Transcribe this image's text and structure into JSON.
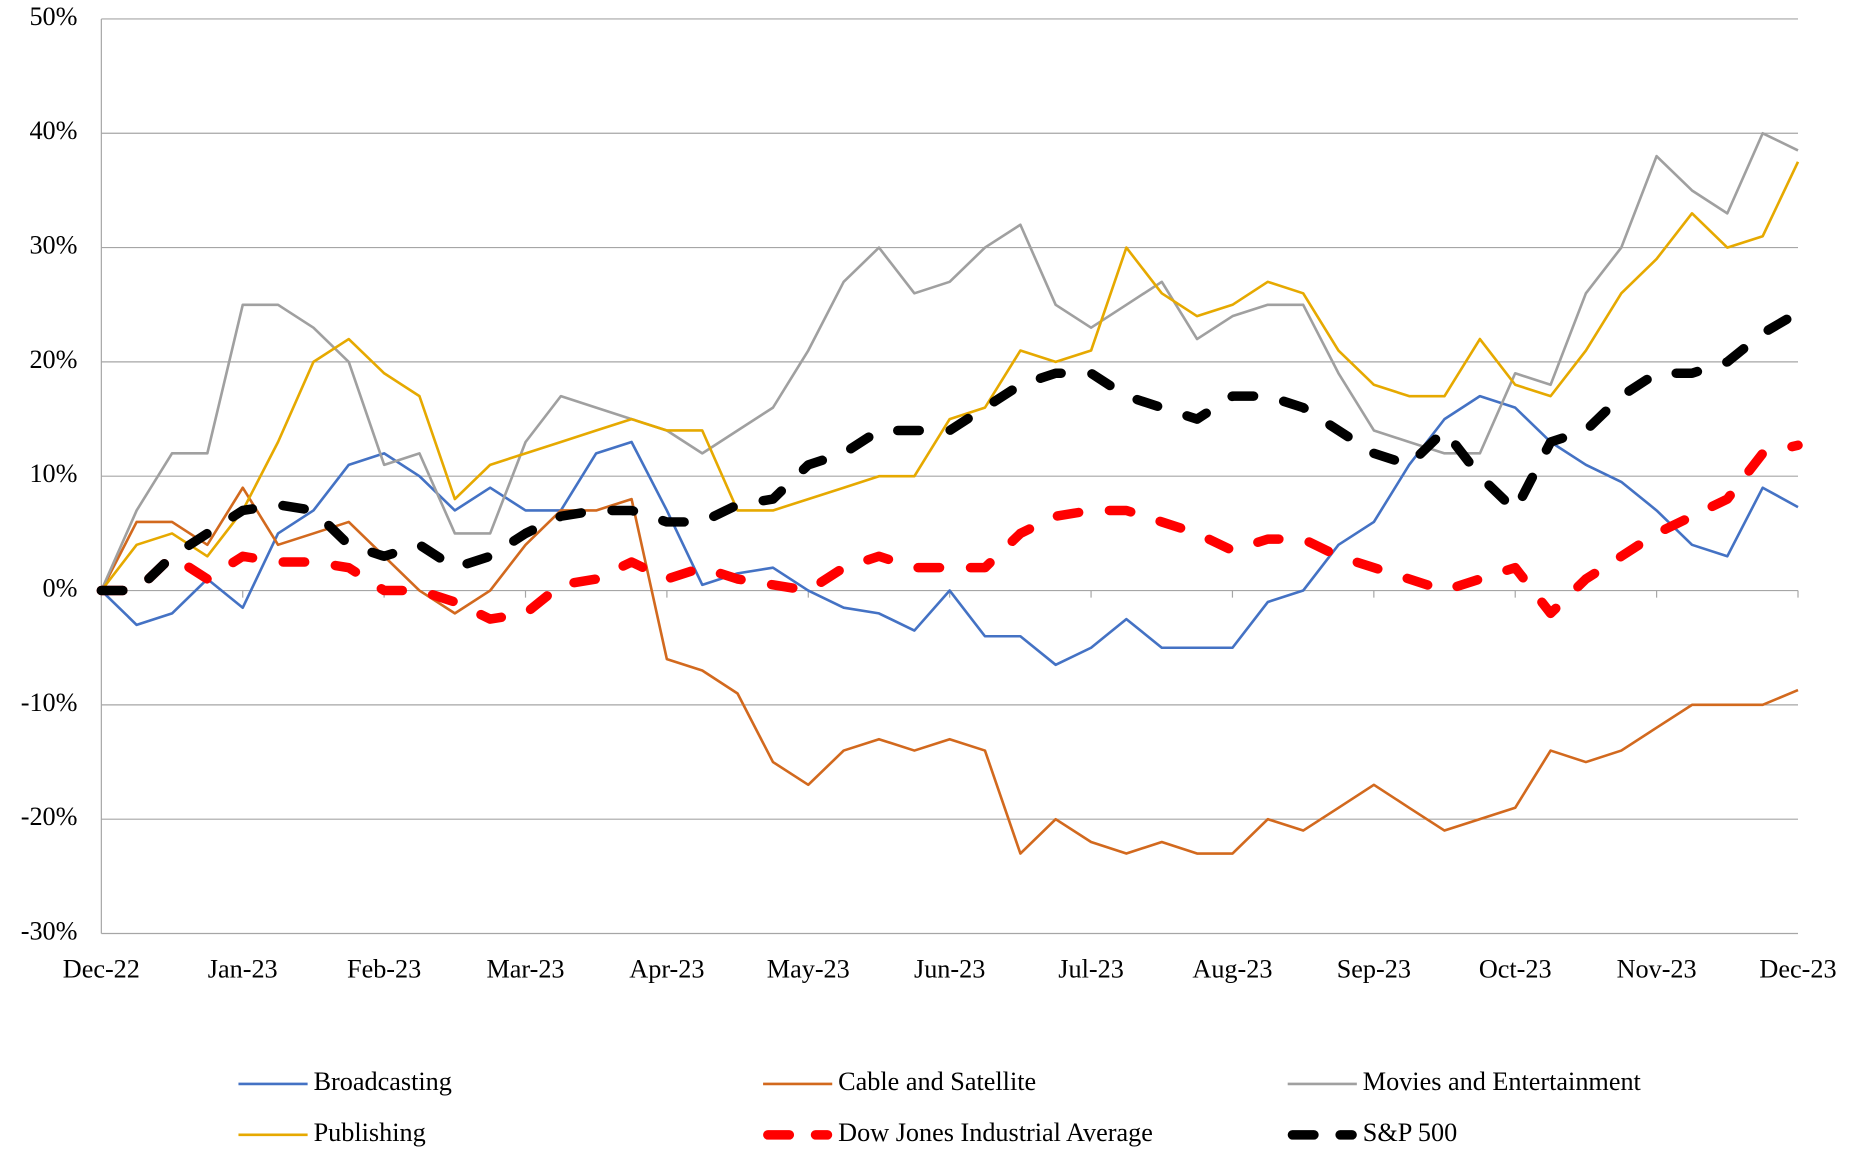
{
  "chart_data": {
    "type": "line",
    "categories": [
      "Dec-22",
      null,
      null,
      null,
      "Jan-23",
      null,
      null,
      null,
      "Feb-23",
      null,
      null,
      null,
      "Mar-23",
      null,
      null,
      null,
      "Apr-23",
      null,
      null,
      null,
      "May-23",
      null,
      null,
      null,
      "Jun-23",
      null,
      null,
      null,
      "Jul-23",
      null,
      null,
      null,
      "Aug-23",
      null,
      null,
      null,
      "Sep-23",
      null,
      null,
      null,
      "Oct-23",
      null,
      null,
      null,
      "Nov-23",
      null,
      null,
      null,
      "Dec-23"
    ],
    "series": [
      {
        "name": "Broadcasting",
        "color": "#4472c4",
        "dashed": false,
        "values": [
          0,
          -3,
          -2,
          1,
          -1.5,
          5,
          7,
          11,
          12,
          10,
          7,
          9,
          7,
          7,
          12,
          13,
          7,
          0.5,
          1.5,
          2,
          0,
          -1.5,
          -2,
          -3.5,
          0,
          -4,
          -4,
          -6.5,
          -5,
          -2.5,
          -5,
          -5,
          -5,
          -1,
          0,
          4,
          6,
          11,
          15,
          17,
          16,
          13,
          11,
          9.5,
          7,
          4,
          3,
          9,
          7.3
        ]
      },
      {
        "name": "Cable and Satellite",
        "color": "#d2691e",
        "dashed": false,
        "values": [
          0,
          6,
          6,
          4,
          9,
          4,
          5,
          6,
          3,
          0,
          -2,
          0,
          4,
          7,
          7,
          8,
          -6,
          -7,
          -9,
          -15,
          -17,
          -14,
          -13,
          -14,
          -13,
          -14,
          -23,
          -20,
          -22,
          -23,
          -22,
          -23,
          -23,
          -20,
          -21,
          -19,
          -17,
          -19,
          -21,
          -20,
          -19,
          -14,
          -15,
          -14,
          -12,
          -10,
          -10,
          -10,
          -8.7
        ]
      },
      {
        "name": "Movies and Entertainment",
        "color": "#a0a0a0",
        "dashed": false,
        "values": [
          0,
          7,
          12,
          12,
          25,
          25,
          23,
          20,
          11,
          12,
          5,
          5,
          13,
          17,
          16,
          15,
          14,
          12,
          14,
          16,
          21,
          27,
          30,
          26,
          27,
          30,
          32,
          25,
          23,
          25,
          27,
          22,
          24,
          25,
          25,
          19,
          14,
          13,
          12,
          12,
          19,
          18,
          26,
          30,
          38,
          35,
          33,
          40,
          38.5
        ]
      },
      {
        "name": "Publishing",
        "color": "#e6a900",
        "dashed": false,
        "values": [
          0,
          4,
          5,
          3,
          7,
          13,
          20,
          22,
          19,
          17,
          8,
          11,
          12,
          13,
          14,
          15,
          14,
          14,
          7,
          7,
          8,
          9,
          10,
          10,
          15,
          16,
          21,
          20,
          21,
          30,
          26,
          24,
          25,
          27,
          26,
          21,
          18,
          17,
          17,
          22,
          18,
          17,
          21,
          26,
          29,
          33,
          30,
          31,
          37.5
        ]
      },
      {
        "name": "Dow Jones Industrial Average",
        "color": "#ff0000",
        "dashed": true,
        "values": [
          0,
          0,
          3,
          1,
          3,
          2.5,
          2.5,
          2,
          0,
          0,
          -1,
          -2.5,
          -2,
          0.5,
          1,
          2.5,
          1,
          2,
          1,
          0.5,
          0,
          2,
          3,
          2,
          2,
          2,
          5,
          6.5,
          7,
          7,
          6,
          5,
          3.5,
          4.5,
          4.5,
          3,
          2,
          1,
          0,
          1,
          2,
          -2,
          1,
          3,
          5,
          6.5,
          8,
          12,
          12.7
        ]
      },
      {
        "name": "S&P 500",
        "color": "#000000",
        "dashed": true,
        "values": [
          0,
          0,
          3,
          5,
          7,
          7.5,
          7,
          4,
          3,
          4,
          2,
          3,
          5,
          6.5,
          7,
          7,
          6,
          6,
          7.5,
          8,
          11,
          12,
          14,
          14,
          14,
          16,
          18,
          19,
          19,
          17,
          16,
          15,
          17,
          17,
          16,
          14,
          12,
          11,
          14,
          10,
          7,
          13,
          14,
          17,
          19,
          19,
          20,
          22.5,
          24.3
        ]
      }
    ],
    "ylim": [
      -30,
      50
    ],
    "yticks": [
      {
        "value": -30,
        "label": "-30%"
      },
      {
        "value": -20,
        "label": "-20%"
      },
      {
        "value": -10,
        "label": "-10%"
      },
      {
        "value": 0,
        "label": "0%"
      },
      {
        "value": 10,
        "label": "10%"
      },
      {
        "value": 20,
        "label": "20%"
      },
      {
        "value": 30,
        "label": "30%"
      },
      {
        "value": 40,
        "label": "40%"
      },
      {
        "value": 50,
        "label": "50%"
      }
    ],
    "grid": true,
    "legend": "bottom"
  }
}
